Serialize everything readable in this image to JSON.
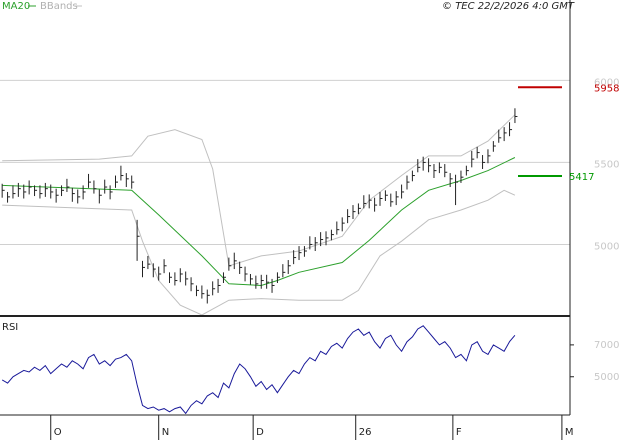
{
  "chart_data": {
    "type": "ohlc",
    "credit": "© TEC 22/2/2026 4:0 GMT",
    "xlim": [
      -0.4,
      105.2
    ],
    "xticks": [
      {
        "value": 9,
        "label": "O"
      },
      {
        "value": 29,
        "label": "N"
      },
      {
        "value": 46.5,
        "label": "D"
      },
      {
        "value": 65.5,
        "label": "26"
      },
      {
        "value": 83.5,
        "label": "F"
      },
      {
        "value": 103.7,
        "label": "M"
      }
    ],
    "ylim": [
      4570,
      6490
    ],
    "yticks": [
      5000,
      5500,
      6000
    ],
    "grid": true,
    "bar_color": "#222222",
    "high": [
      5370,
      5320,
      5360,
      5375,
      5365,
      5390,
      5360,
      5360,
      5375,
      5365,
      5340,
      5360,
      5400,
      5345,
      5335,
      5360,
      5430,
      5390,
      5335,
      5395,
      5360,
      5420,
      5480,
      5435,
      5420,
      5150,
      4900,
      4930,
      4885,
      4865,
      4910,
      4830,
      4830,
      4855,
      4835,
      4800,
      4750,
      4750,
      4725,
      4775,
      4790,
      4830,
      4920,
      4950,
      4895,
      4865,
      4820,
      4810,
      4815,
      4815,
      4790,
      4830,
      4880,
      4905,
      4965,
      4990,
      4990,
      5050,
      5045,
      5075,
      5080,
      5090,
      5140,
      5165,
      5215,
      5240,
      5250,
      5300,
      5305,
      5285,
      5320,
      5330,
      5310,
      5325,
      5365,
      5420,
      5450,
      5520,
      5535,
      5525,
      5490,
      5500,
      5490,
      5435,
      5425,
      5450,
      5480,
      5570,
      5595,
      5545,
      5580,
      5630,
      5700,
      5715,
      5745,
      5830
    ],
    "low": [
      5285,
      5255,
      5280,
      5290,
      5280,
      5305,
      5295,
      5280,
      5290,
      5280,
      5255,
      5295,
      5320,
      5260,
      5250,
      5275,
      5345,
      5310,
      5250,
      5310,
      5275,
      5345,
      5390,
      5350,
      5340,
      4900,
      4800,
      4850,
      4800,
      4780,
      4825,
      4765,
      4750,
      4770,
      4750,
      4715,
      4685,
      4670,
      4640,
      4690,
      4705,
      4765,
      4840,
      4850,
      4820,
      4775,
      4755,
      4730,
      4730,
      4730,
      4705,
      4765,
      4800,
      4820,
      4880,
      4905,
      4925,
      4970,
      4960,
      4990,
      4995,
      5025,
      5060,
      5080,
      5130,
      5155,
      5185,
      5220,
      5220,
      5200,
      5235,
      5265,
      5230,
      5240,
      5280,
      5335,
      5385,
      5440,
      5450,
      5440,
      5405,
      5435,
      5410,
      5350,
      5240,
      5375,
      5420,
      5470,
      5525,
      5460,
      5495,
      5565,
      5620,
      5630,
      5660,
      5740
    ],
    "close": [
      5330,
      5290,
      5310,
      5340,
      5320,
      5350,
      5330,
      5310,
      5340,
      5320,
      5300,
      5330,
      5350,
      5310,
      5290,
      5320,
      5380,
      5340,
      5300,
      5350,
      5320,
      5380,
      5420,
      5400,
      5380,
      5050,
      4860,
      4880,
      4850,
      4820,
      4870,
      4800,
      4780,
      4820,
      4790,
      4760,
      4720,
      4700,
      4690,
      4730,
      4750,
      4800,
      4870,
      4900,
      4860,
      4820,
      4790,
      4760,
      4780,
      4770,
      4750,
      4800,
      4830,
      4870,
      4920,
      4950,
      4960,
      5000,
      5010,
      5030,
      5040,
      5060,
      5090,
      5130,
      5170,
      5200,
      5220,
      5250,
      5270,
      5240,
      5280,
      5300,
      5260,
      5290,
      5320,
      5380,
      5420,
      5470,
      5500,
      5480,
      5450,
      5470,
      5440,
      5400,
      5380,
      5410,
      5450,
      5520,
      5560,
      5500,
      5540,
      5600,
      5650,
      5680,
      5700,
      5780
    ],
    "ma": {
      "name": "MA20",
      "color": "#2ca02c",
      "x": [
        0,
        24,
        29,
        37,
        42,
        48,
        51,
        55,
        63,
        68,
        74,
        79,
        85,
        90,
        95
      ],
      "values": [
        5360,
        5330,
        5180,
        4930,
        4760,
        4750,
        4780,
        4830,
        4890,
        5025,
        5210,
        5330,
        5390,
        5450,
        5530
      ]
    },
    "bands": {
      "name": "BBands",
      "color": "#c0c0c0",
      "upper": {
        "x": [
          0,
          18,
          24,
          27,
          32,
          37,
          39,
          42,
          48,
          55,
          63,
          68,
          74,
          79,
          85,
          90,
          95
        ],
        "values": [
          5510,
          5520,
          5540,
          5660,
          5700,
          5640,
          5460,
          4870,
          4930,
          4960,
          5050,
          5270,
          5420,
          5540,
          5540,
          5630,
          5790
        ]
      },
      "lower": {
        "x": [
          0,
          24,
          26,
          29,
          33,
          37,
          42,
          48,
          55,
          63,
          66,
          70,
          74,
          79,
          85,
          90,
          93,
          95
        ],
        "values": [
          5240,
          5210,
          5020,
          4780,
          4630,
          4570,
          4660,
          4670,
          4660,
          4660,
          4720,
          4930,
          5020,
          5150,
          5210,
          5270,
          5330,
          5300
        ]
      }
    },
    "levels": [
      {
        "value": 5958,
        "color": "#c00000"
      },
      {
        "value": 5417,
        "color": "#009900"
      }
    ],
    "rsi": {
      "label": "RSI",
      "color": "#1a1a9a",
      "ylim": [
        26,
        87.5
      ],
      "yticks": [
        {
          "value": 70,
          "label": "7000"
        },
        {
          "value": 50,
          "label": "5000"
        }
      ],
      "values": [
        48,
        46,
        50,
        52,
        54,
        53,
        56,
        54,
        57,
        52,
        55,
        58,
        56,
        60,
        58,
        55,
        62,
        64,
        58,
        60,
        57,
        61,
        62,
        64,
        60,
        45,
        32,
        30,
        31,
        29,
        30,
        28,
        30,
        31,
        27,
        32,
        35,
        33,
        38,
        40,
        37,
        46,
        43,
        52,
        58,
        55,
        50,
        44,
        47,
        42,
        45,
        40,
        45,
        50,
        54,
        52,
        58,
        62,
        60,
        66,
        64,
        69,
        71,
        68,
        74,
        78,
        80,
        76,
        78,
        72,
        68,
        74,
        76,
        70,
        66,
        72,
        75,
        80,
        82,
        78,
        74,
        70,
        72,
        68,
        62,
        64,
        60,
        70,
        72,
        66,
        64,
        70,
        68,
        66,
        72,
        76
      ]
    }
  }
}
